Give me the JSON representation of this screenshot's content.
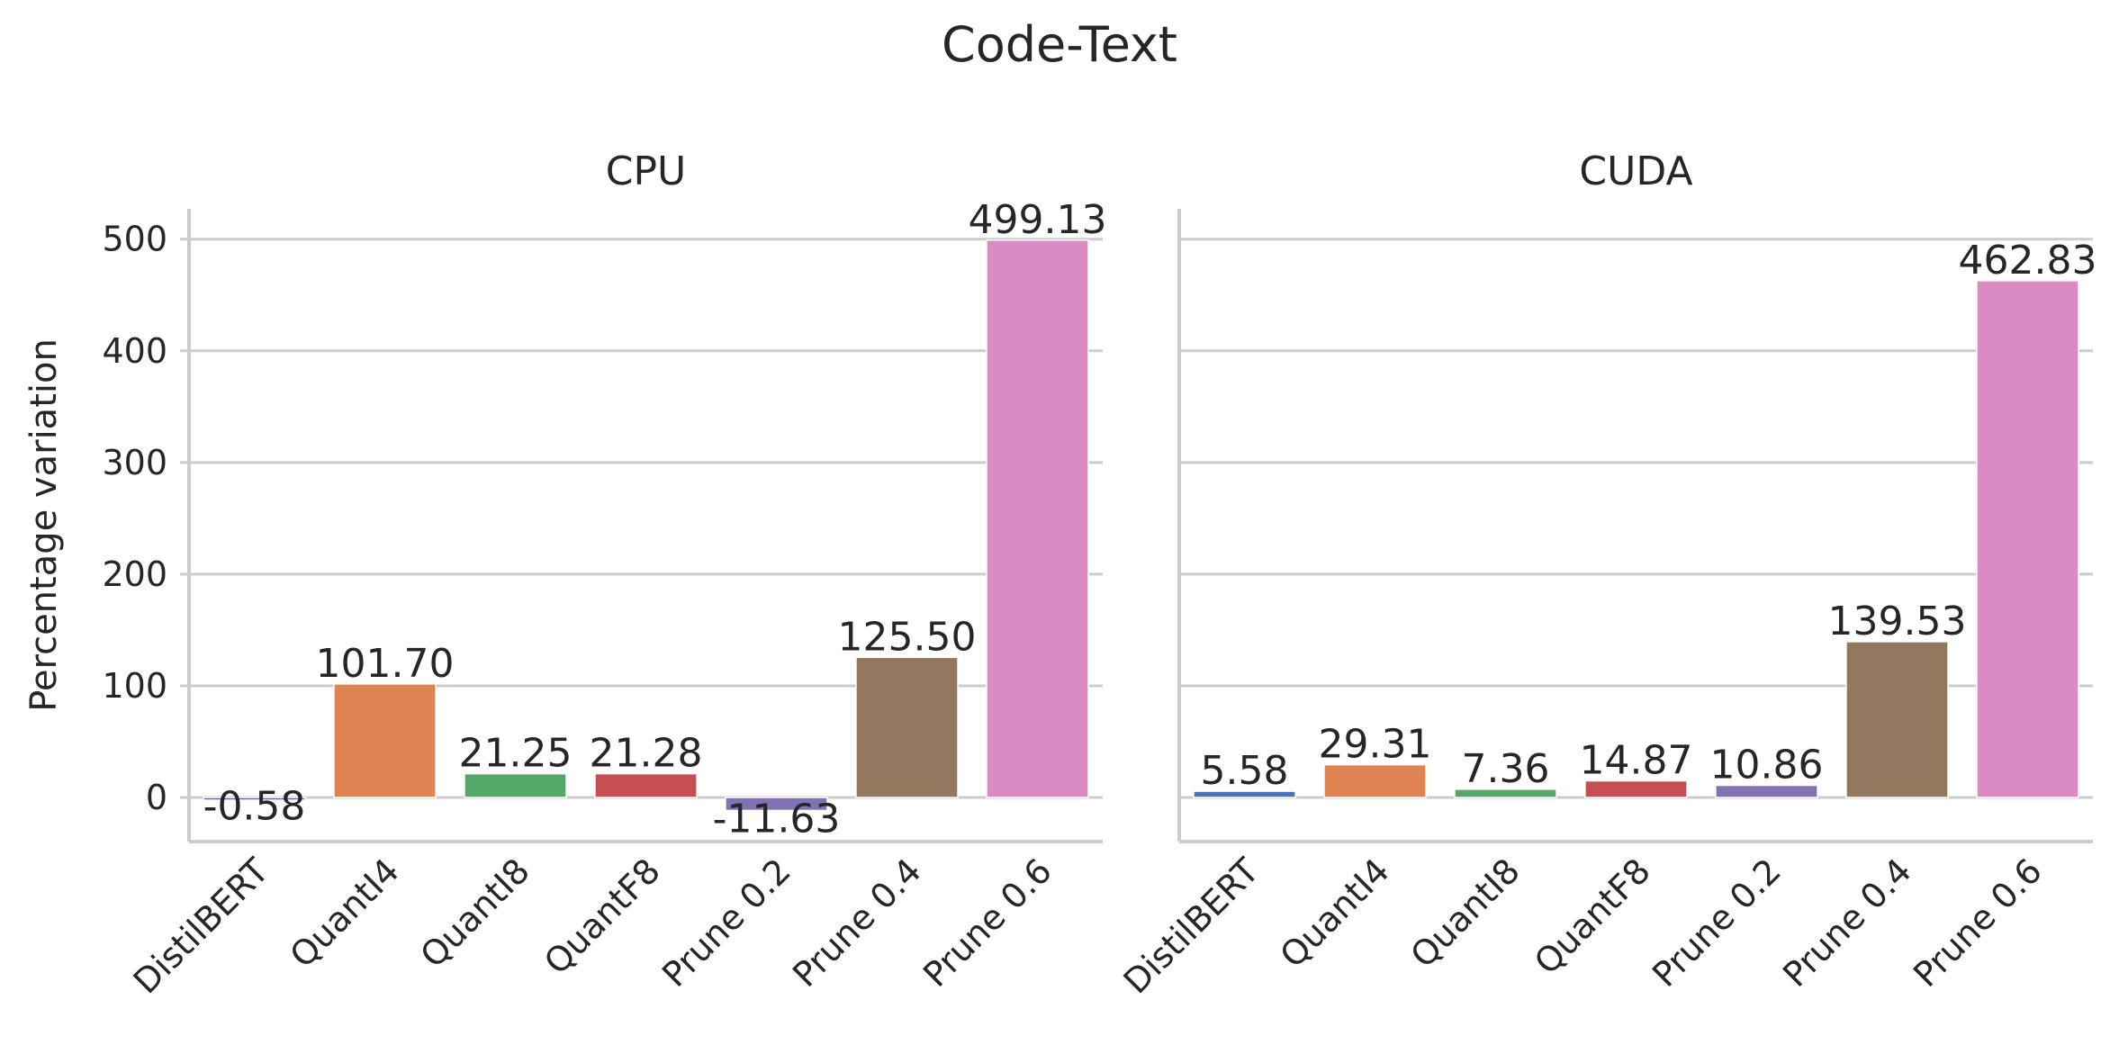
{
  "title": "Code-Text",
  "chart_data": {
    "type": "bar",
    "title": "Code-Text",
    "ylabel": "Percentage variation",
    "xlabel": "",
    "categories": [
      "DistilBERT",
      "QuantI4",
      "QuantI8",
      "QuantF8",
      "Prune 0.2",
      "Prune 0.4",
      "Prune 0.6"
    ],
    "colors": [
      "#4c72b0",
      "#dd8452",
      "#55a868",
      "#c44e52",
      "#8172b3",
      "#937860",
      "#da8bc3"
    ],
    "ylim": [
      -40,
      530
    ],
    "yticks": [
      0,
      100,
      200,
      300,
      400,
      500
    ],
    "grid": "horizontal",
    "panels": [
      {
        "title": "CPU",
        "values": [
          -0.58,
          101.7,
          21.25,
          21.28,
          -11.63,
          125.5,
          499.13
        ],
        "labels": [
          "-0.58",
          "101.70",
          "21.25",
          "21.28",
          "-11.63",
          "125.50",
          "499.13"
        ]
      },
      {
        "title": "CUDA",
        "values": [
          5.58,
          29.31,
          7.36,
          14.87,
          10.86,
          139.53,
          462.83
        ],
        "labels": [
          "5.58",
          "29.31",
          "7.36",
          "14.87",
          "10.86",
          "139.53",
          "462.83"
        ]
      }
    ]
  }
}
